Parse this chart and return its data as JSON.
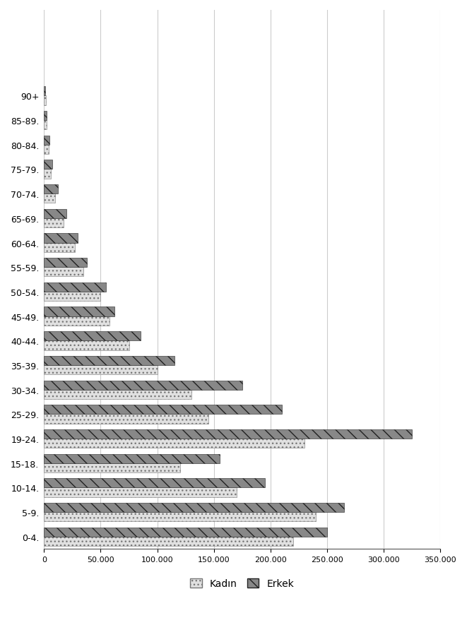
{
  "age_groups": [
    "90+",
    "85-89.",
    "80-84.",
    "75-79.",
    "70-74.",
    "65-69.",
    "60-64.",
    "55-59.",
    "50-54.",
    "45-49.",
    "40-44.",
    "35-39.",
    "30-34.",
    "25-29.",
    "19-24.",
    "15-18.",
    "10-14.",
    "5-9.",
    "0-4."
  ],
  "kadin": [
    1500,
    2000,
    4000,
    6000,
    10000,
    17000,
    27000,
    35000,
    50000,
    58000,
    75000,
    100000,
    130000,
    145000,
    230000,
    120000,
    170000,
    240000,
    220000
  ],
  "erkek": [
    1200,
    2200,
    4500,
    7000,
    12000,
    20000,
    30000,
    38000,
    55000,
    62000,
    85000,
    115000,
    175000,
    210000,
    325000,
    155000,
    195000,
    265000,
    250000
  ],
  "xlim": [
    0,
    350000
  ],
  "xticks": [
    0,
    50000,
    100000,
    150000,
    200000,
    250000,
    300000,
    350000
  ],
  "xtick_labels": [
    "0",
    "50.000",
    "100.000",
    "150.000",
    "200.000",
    "250.000",
    "300.000",
    "350.000"
  ],
  "legend_kadin": "Kadın",
  "legend_erkek": "Erkek",
  "background_color": "#ffffff",
  "grid_color": "#cccccc"
}
